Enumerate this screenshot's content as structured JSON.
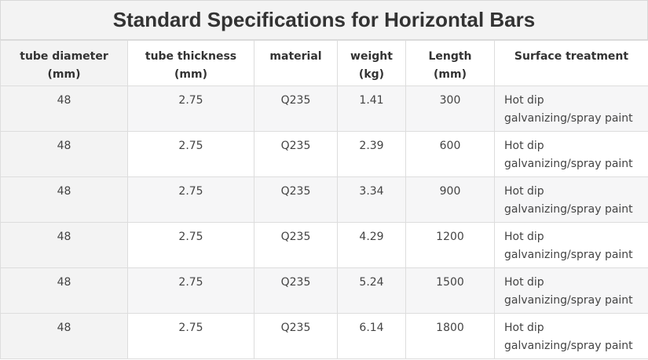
{
  "title": "Standard Specifications for Horizontal Bars",
  "headers": [
    [
      "tube diameter",
      "(mm)"
    ],
    [
      "tube thickness",
      "(mm)"
    ],
    [
      "material",
      ""
    ],
    [
      "weight",
      "(kg)"
    ],
    [
      "Length",
      "(mm)"
    ],
    [
      "Surface treatment",
      ""
    ]
  ],
  "rows": [
    {
      "diameter": "48",
      "thickness": "2.75",
      "material": "Q235",
      "weight": "1.41",
      "length": "300",
      "surface": "Hot dip galvanizing/spray paint"
    },
    {
      "diameter": "48",
      "thickness": "2.75",
      "material": "Q235",
      "weight": "2.39",
      "length": "600",
      "surface": "Hot dip galvanizing/spray paint"
    },
    {
      "diameter": "48",
      "thickness": "2.75",
      "material": "Q235",
      "weight": "3.34",
      "length": "900",
      "surface": "Hot dip galvanizing/spray paint"
    },
    {
      "diameter": "48",
      "thickness": "2.75",
      "material": "Q235",
      "weight": "4.29",
      "length": "1200",
      "surface": "Hot dip galvanizing/spray paint"
    },
    {
      "diameter": "48",
      "thickness": "2.75",
      "material": "Q235",
      "weight": "5.24",
      "length": "1500",
      "surface": "Hot dip galvanizing/spray paint"
    },
    {
      "diameter": "48",
      "thickness": "2.75",
      "material": "Q235",
      "weight": "6.14",
      "length": "1800",
      "surface": "Hot dip galvanizing/spray paint"
    }
  ]
}
